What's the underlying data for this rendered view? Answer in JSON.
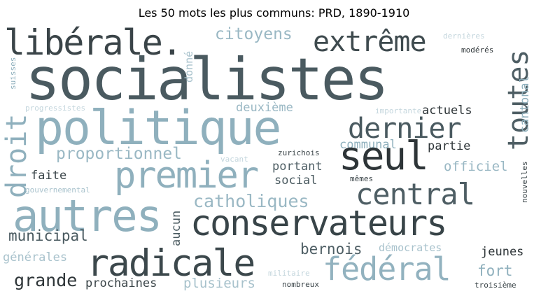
{
  "title": "Les 50 mots les plus communs: PRD, 1890-1910",
  "words": {
    "socialistes": {
      "text": "socialistes",
      "color": "#4a5a60"
    },
    "politique": {
      "text": "politique",
      "color": "#8fb0bd"
    },
    "conservateurs": {
      "text": "conservateurs",
      "color": "#384448"
    },
    "radicale": {
      "text": "radicale",
      "color": "#3c484c"
    },
    "autres": {
      "text": "autres",
      "color": "#8fb0bd"
    },
    "libérale": {
      "text": "libérale.",
      "color": "#3a4448"
    },
    "seul": {
      "text": "seul",
      "color": "#2e3538"
    },
    "fédéral": {
      "text": "fédéral",
      "color": "#92b2bf"
    },
    "premier": {
      "text": "premier",
      "color": "#8fb0bd"
    },
    "central": {
      "text": "central",
      "color": "#4e5e64"
    },
    "extrême": {
      "text": "extrême",
      "color": "#3e4a4e"
    },
    "dernier": {
      "text": "dernier",
      "color": "#4a5a60"
    },
    "toutes": {
      "text": "toutes",
      "color": "#4e5e64"
    },
    "droit": {
      "text": "droit",
      "color": "#8fb0bd"
    },
    "catholiques": {
      "text": "catholiques",
      "color": "#9ab8c4"
    },
    "citoyens": {
      "text": "citoyens",
      "color": "#9ab8c4"
    },
    "proportionnel": {
      "text": "proportionnel",
      "color": "#9ab8c4"
    },
    "municipal": {
      "text": "municipal",
      "color": "#4a5a60"
    },
    "grande": {
      "text": "grande",
      "color": "#2e3538"
    },
    "prochaines": {
      "text": "prochaines",
      "color": "#3a4448"
    },
    "plusieurs": {
      "text": "plusieurs",
      "color": "#a8c2cc"
    },
    "bernois": {
      "text": "bernois",
      "color": "#4e5e64"
    },
    "démocrates": {
      "text": "démocrates",
      "color": "#a8c2cc"
    },
    "fort": {
      "text": "fort",
      "color": "#8fb0bd"
    },
    "jeunes": {
      "text": "jeunes",
      "color": "#2e3538"
    },
    "aucun": {
      "text": "aucun",
      "color": "#4a5a60"
    },
    "faite": {
      "text": "faite",
      "color": "#3a4448"
    },
    "portant": {
      "text": "portant",
      "color": "#4e5e64"
    },
    "social": {
      "text": "social",
      "color": "#4a5a60"
    },
    "officiel": {
      "text": "officiel",
      "color": "#9ab8c4"
    },
    "actuels": {
      "text": "actuels",
      "color": "#2e3538"
    },
    "partie": {
      "text": "partie",
      "color": "#2e3538"
    },
    "communal": {
      "text": "communal",
      "color": "#8fb0bd"
    },
    "deuxième": {
      "text": "deuxième",
      "color": "#9ab8c4"
    },
    "cantonal": {
      "text": "cantonal",
      "color": "#8fb0bd"
    },
    "générales": {
      "text": "générales",
      "color": "#a8c2cc"
    },
    "donné": {
      "text": "donné",
      "color": "#a8c2cc"
    },
    "suisses": {
      "text": "suisses",
      "color": "#8fb0bd"
    },
    "progressistes": {
      "text": "progressistes",
      "color": "#c4d6dd"
    },
    "importante": {
      "text": "importante",
      "color": "#c4d6dd"
    },
    "dernières": {
      "text": "dernières",
      "color": "#c4d6dd"
    },
    "modérés": {
      "text": "modérés",
      "color": "#2e3538"
    },
    "zurichois": {
      "text": "zurichois",
      "color": "#3a4448"
    },
    "vacant": {
      "text": "vacant",
      "color": "#c4d6dd"
    },
    "gouvernemental": {
      "text": "gouvernemental",
      "color": "#a8c2cc"
    },
    "mêmes": {
      "text": "mêmes",
      "color": "#3a4448"
    },
    "nouvelles": {
      "text": "nouvelles",
      "color": "#3a4448"
    },
    "militaire": {
      "text": "militaire",
      "color": "#c4d6dd"
    },
    "nombreux": {
      "text": "nombreux",
      "color": "#3a4448"
    },
    "troisième": {
      "text": "troisième",
      "color": "#3a4448"
    }
  }
}
